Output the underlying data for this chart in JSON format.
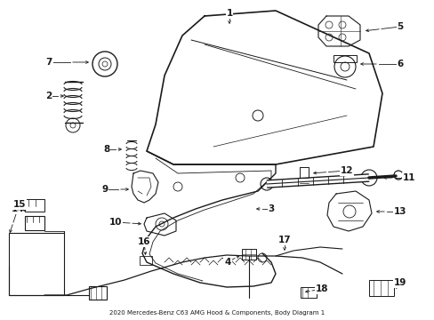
{
  "title": "2020 Mercedes-Benz C63 AMG Hood & Components, Body Diagram 1",
  "bg": "#ffffff",
  "lc": "#1a1a1a",
  "fig_w": 4.89,
  "fig_h": 3.6,
  "dpi": 100
}
